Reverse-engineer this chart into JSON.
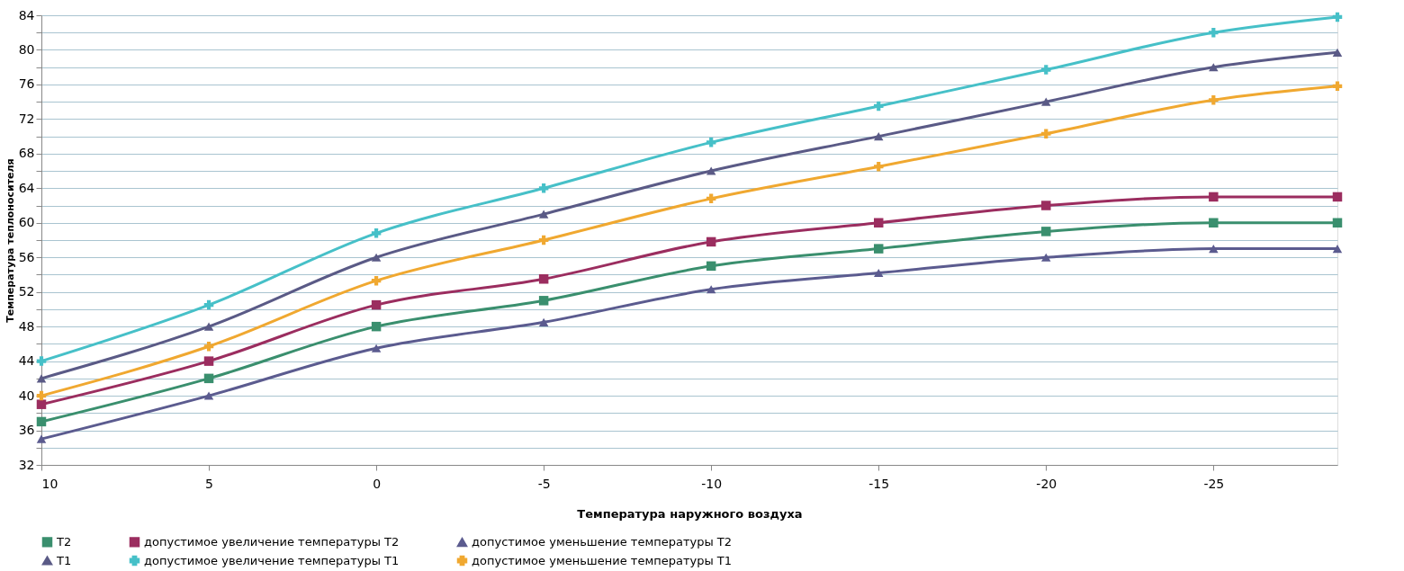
{
  "chart_data": {
    "type": "line",
    "xlabel": "Температура наружного воздуха",
    "ylabel": "Температура теплоносителя",
    "x": [
      10,
      5,
      0,
      -5,
      -10,
      -15,
      -20,
      -25,
      -28.7
    ],
    "xlim": [
      10,
      -28.7
    ],
    "xticks": [
      10,
      5,
      0,
      -5,
      -10,
      -15,
      -20,
      -25
    ],
    "ylim": [
      32,
      84
    ],
    "yticks": [
      32,
      {
        "value": 34,
        "label": null
      },
      36,
      {
        "value": 38,
        "label": null
      },
      40,
      {
        "value": 42,
        "label": null
      },
      44,
      {
        "value": 46,
        "label": null
      },
      48,
      {
        "value": 50,
        "label": null
      },
      52,
      {
        "value": 54,
        "label": null
      },
      56,
      {
        "value": 58,
        "label": null
      },
      60,
      {
        "value": 62,
        "label": null
      },
      64,
      {
        "value": 66,
        "label": null
      },
      68,
      {
        "value": 70,
        "label": null
      },
      72,
      {
        "value": 74,
        "label": null
      },
      76,
      {
        "value": 78,
        "label": null
      },
      80,
      {
        "value": 82,
        "label": null
      },
      84
    ],
    "grid": "y",
    "legend": "bottom",
    "line_style": "solid",
    "series": [
      {
        "name": "T2",
        "color": "#3a8f6e",
        "marker": "square",
        "values": [
          37,
          42,
          48,
          51,
          55,
          57,
          59,
          60,
          60
        ]
      },
      {
        "name": "допустимое увеличение температуры T2",
        "color": "#9b2d5f",
        "marker": "square",
        "values": [
          39,
          44,
          50.5,
          53.5,
          57.8,
          60,
          62,
          63,
          63
        ]
      },
      {
        "name": "допустимое уменьшение температуры T2",
        "color": "#5b5b8f",
        "marker": "triangle",
        "values": [
          35,
          40,
          45.5,
          48.5,
          52.3,
          54.2,
          56,
          57,
          57
        ]
      },
      {
        "name": "T1",
        "color": "#5a5a86",
        "marker": "triangle",
        "values": [
          42,
          48,
          56,
          61,
          66,
          70,
          74,
          78,
          79.7
        ]
      },
      {
        "name": "допустимое увеличение температуры T1",
        "color": "#46c0c8",
        "marker": "cross",
        "values": [
          44,
          50.5,
          58.8,
          64,
          69.3,
          73.5,
          77.7,
          82,
          83.8
        ]
      },
      {
        "name": "допустимое уменьшение температуры T1",
        "color": "#f0a830",
        "marker": "cross",
        "values": [
          40,
          45.7,
          53.3,
          58,
          62.8,
          66.5,
          70.3,
          74.2,
          75.8
        ]
      }
    ]
  }
}
